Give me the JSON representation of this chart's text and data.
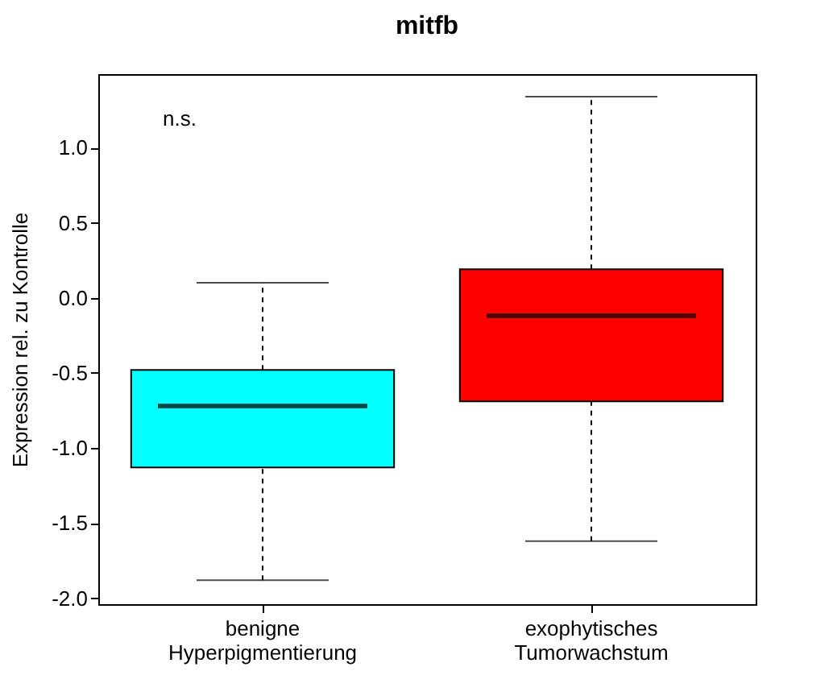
{
  "chart_data": {
    "type": "box",
    "title": "mitfb",
    "ylabel": "Expression rel. zu Kontrolle",
    "categories": [
      "benigne\nHyperpigmentierung",
      "exophytisches\nTumorwachstum"
    ],
    "colors": [
      "#00ffff",
      "#ff0000"
    ],
    "boxes": [
      {
        "low": -1.88,
        "q1": -1.13,
        "median": -0.72,
        "q3": -0.48,
        "high": 0.1
      },
      {
        "low": -1.62,
        "q1": -0.69,
        "median": -0.12,
        "q3": 0.19,
        "high": 1.34
      }
    ],
    "ylim": [
      -2.04,
      1.49
    ],
    "yticks": [
      {
        "value": -2,
        "label": "-2.0"
      },
      {
        "value": -1.5,
        "label": "-1.5"
      },
      {
        "value": -1,
        "label": "-1.0"
      },
      {
        "value": -0.5,
        "label": "-0.5"
      },
      {
        "value": 0,
        "label": "0.0"
      },
      {
        "value": 0.5,
        "label": "0.5"
      },
      {
        "value": 1,
        "label": "1.0"
      }
    ],
    "annotations": [
      "n.s."
    ],
    "grid": false
  }
}
